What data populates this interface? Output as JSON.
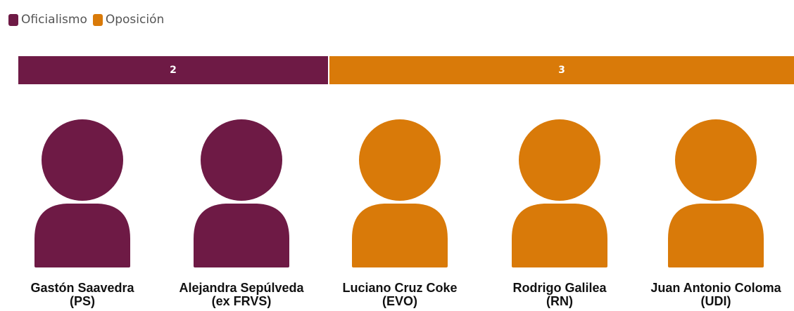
{
  "colors": {
    "oficialismo": "#6e1a45",
    "oposicion": "#d97a09"
  },
  "legend": [
    {
      "label": "Oficialismo",
      "color": "#6e1a45"
    },
    {
      "label": "Oposición",
      "color": "#d97a09"
    }
  ],
  "chart_data": {
    "type": "bar",
    "stacked": true,
    "orientation": "horizontal",
    "series": [
      {
        "name": "Oficialismo",
        "values": [
          2
        ],
        "color": "#6e1a45"
      },
      {
        "name": "Oposición",
        "values": [
          3
        ],
        "color": "#d97a09"
      }
    ],
    "data_labels": [
      "2",
      "3"
    ],
    "legend_position": "top-left",
    "grid": false
  },
  "people": [
    {
      "name": "Gastón Saavedra",
      "party": "(PS)",
      "group": "Oficialismo",
      "color": "#6e1a45"
    },
    {
      "name": "Alejandra Sepúlveda",
      "party": "(ex FRVS)",
      "group": "Oficialismo",
      "color": "#6e1a45"
    },
    {
      "name": "Luciano Cruz Coke",
      "party": "(EVO)",
      "group": "Oposición",
      "color": "#d97a09"
    },
    {
      "name": "Rodrigo Galilea",
      "party": "(RN)",
      "group": "Oposición",
      "color": "#d97a09"
    },
    {
      "name": "Juan Antonio Coloma",
      "party": "(UDI)",
      "group": "Oposición",
      "color": "#d97a09"
    }
  ]
}
